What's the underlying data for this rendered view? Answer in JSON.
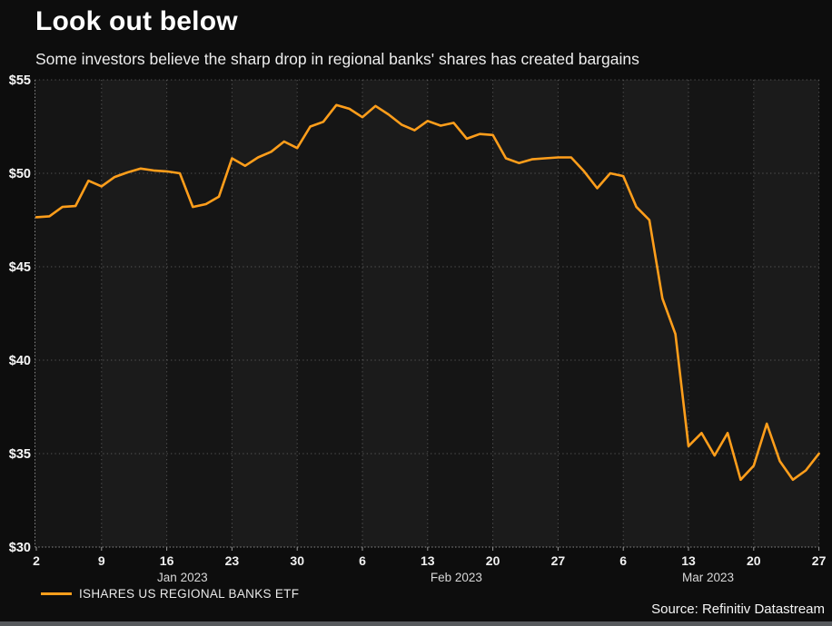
{
  "header": {
    "title": "Look out below",
    "subtitle": "Some investors believe the sharp drop in regional banks' shares has created bargains"
  },
  "legend": {
    "label": "ISHARES US REGIONAL BANKS ETF"
  },
  "source": {
    "text": "Source: Refinitiv Datastream"
  },
  "chart_data": {
    "type": "line",
    "title": "Look out below",
    "subtitle": "Some investors believe the sharp drop in regional banks' shares has created bargains",
    "ylim": [
      30,
      55
    ],
    "grid": "dotted",
    "legend_position": "bottom-left",
    "y_ticks": [
      {
        "value": 55,
        "label": "$55"
      },
      {
        "value": 50,
        "label": "$50"
      },
      {
        "value": 45,
        "label": "$45"
      },
      {
        "value": 40,
        "label": "$40"
      },
      {
        "value": 35,
        "label": "$35"
      },
      {
        "value": 30,
        "label": "$30"
      }
    ],
    "x_ticks": [
      {
        "index": 0,
        "label": "2"
      },
      {
        "index": 5,
        "label": "9"
      },
      {
        "index": 10,
        "label": "16"
      },
      {
        "index": 15,
        "label": "23"
      },
      {
        "index": 20,
        "label": "30"
      },
      {
        "index": 25,
        "label": "6"
      },
      {
        "index": 30,
        "label": "13"
      },
      {
        "index": 35,
        "label": "20"
      },
      {
        "index": 40,
        "label": "27"
      },
      {
        "index": 45,
        "label": "6"
      },
      {
        "index": 50,
        "label": "13"
      },
      {
        "index": 55,
        "label": "20"
      },
      {
        "index": 60,
        "label": "27"
      }
    ],
    "month_labels": [
      {
        "label": "Jan 2023",
        "index": 11.2
      },
      {
        "label": "Feb 2023",
        "index": 32.2
      },
      {
        "label": "Mar 2023",
        "index": 51.5
      }
    ],
    "series": [
      {
        "name": "ISHARES US REGIONAL BANKS ETF",
        "color": "#FF9E1B",
        "dates": [
          "Jan 2",
          "Jan 3",
          "Jan 4",
          "Jan 5",
          "Jan 6",
          "Jan 9",
          "Jan 10",
          "Jan 11",
          "Jan 12",
          "Jan 13",
          "Jan 16",
          "Jan 17",
          "Jan 18",
          "Jan 19",
          "Jan 20",
          "Jan 23",
          "Jan 24",
          "Jan 25",
          "Jan 26",
          "Jan 27",
          "Jan 30",
          "Jan 31",
          "Feb 1",
          "Feb 2",
          "Feb 3",
          "Feb 6",
          "Feb 7",
          "Feb 8",
          "Feb 9",
          "Feb 10",
          "Feb 13",
          "Feb 14",
          "Feb 15",
          "Feb 16",
          "Feb 17",
          "Feb 20",
          "Feb 21",
          "Feb 22",
          "Feb 23",
          "Feb 24",
          "Feb 27",
          "Feb 28",
          "Mar 1",
          "Mar 2",
          "Mar 3",
          "Mar 6",
          "Mar 7",
          "Mar 8",
          "Mar 9",
          "Mar 10",
          "Mar 13",
          "Mar 14",
          "Mar 15",
          "Mar 16",
          "Mar 17",
          "Mar 20",
          "Mar 21",
          "Mar 22",
          "Mar 23",
          "Mar 24",
          "Mar 27"
        ],
        "values": [
          47.65,
          47.7,
          48.2,
          48.25,
          49.6,
          49.3,
          49.8,
          50.05,
          50.25,
          50.15,
          50.1,
          50.0,
          48.2,
          48.35,
          48.75,
          50.8,
          50.4,
          50.85,
          51.15,
          51.7,
          51.35,
          52.5,
          52.75,
          53.65,
          53.45,
          53.0,
          53.6,
          53.15,
          52.6,
          52.3,
          52.8,
          52.55,
          52.7,
          51.85,
          52.1,
          52.05,
          50.8,
          50.55,
          50.75,
          50.8,
          50.85,
          50.85,
          50.1,
          49.2,
          50.0,
          49.85,
          48.2,
          47.5,
          43.3,
          41.4,
          35.4,
          36.1,
          34.9,
          36.1,
          33.6,
          34.35,
          36.6,
          34.6,
          33.6,
          34.1,
          35.0
        ]
      }
    ]
  }
}
